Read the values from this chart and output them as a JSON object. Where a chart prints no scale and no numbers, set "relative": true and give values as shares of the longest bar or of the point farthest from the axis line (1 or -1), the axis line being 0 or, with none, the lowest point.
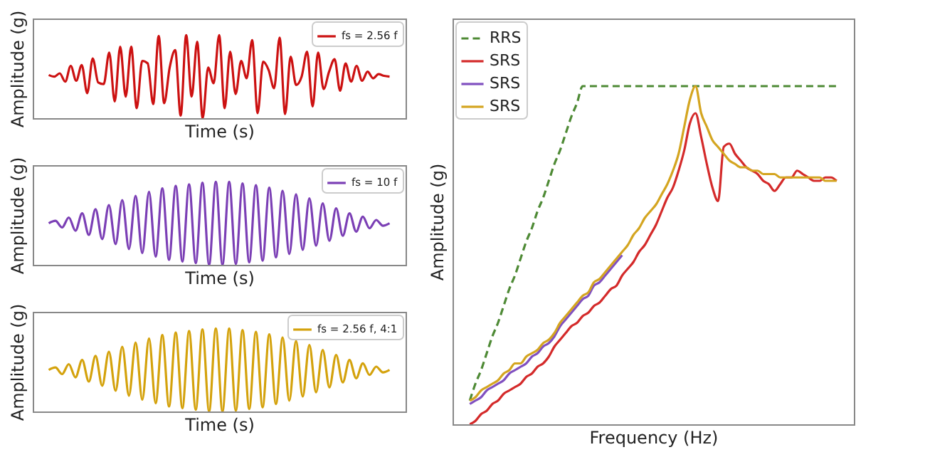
{
  "chart_data": [
    {
      "type": "line",
      "relative": true,
      "xlabel": "Time (s)",
      "ylabel": "Amplitude (g)",
      "legend": "top right",
      "tick_labels": false,
      "categories": [
        null,
        null,
        null,
        null,
        null,
        null,
        null,
        null,
        null,
        null,
        null,
        null,
        null,
        null,
        null,
        null,
        null,
        null,
        null,
        null,
        null,
        null,
        null,
        null,
        null,
        null,
        null,
        null,
        null,
        null,
        null,
        null,
        null,
        null,
        null,
        null,
        null,
        null,
        null,
        null,
        null,
        null,
        null,
        null,
        null,
        null,
        null,
        null,
        null,
        null,
        null,
        null,
        null,
        null,
        null,
        null,
        null,
        null,
        null,
        null,
        null,
        null,
        null
      ],
      "series": [
        {
          "name": "fs = 2.56 f",
          "color": "#cc1111",
          "values": [
            0.52,
            0.5,
            0.54,
            0.44,
            0.63,
            0.45,
            0.64,
            0.3,
            0.72,
            0.43,
            0.41,
            0.79,
            0.2,
            0.86,
            0.26,
            0.86,
            0.12,
            0.69,
            0.66,
            0.17,
            0.99,
            0.18,
            0.61,
            0.82,
            0.03,
            1,
            0.26,
            0.92,
            0,
            0.61,
            0.42,
            1,
            0.12,
            0.8,
            0.29,
            0.69,
            0.48,
            0.94,
            0.06,
            0.68,
            0.58,
            0.36,
            0.97,
            0.05,
            0.74,
            0.4,
            0.5,
            0.8,
            0.14,
            0.79,
            0.35,
            0.56,
            0.71,
            0.33,
            0.66,
            0.44,
            0.63,
            0.45,
            0.56,
            0.48,
            0.53,
            0.51,
            0.5
          ]
        }
      ]
    },
    {
      "type": "line",
      "relative": true,
      "xlabel": "Time (s)",
      "ylabel": "Amplitude (g)",
      "legend": "top right",
      "tick_labels": false,
      "categories": [
        null,
        null,
        null,
        null,
        null,
        null,
        null,
        null,
        null,
        null,
        null,
        null,
        null,
        null,
        null,
        null,
        null,
        null,
        null,
        null,
        null,
        null,
        null,
        null,
        null,
        null,
        null,
        null,
        null,
        null,
        null,
        null,
        null,
        null,
        null,
        null,
        null,
        null,
        null,
        null,
        null,
        null,
        null,
        null,
        null,
        null,
        null,
        null,
        null,
        null,
        null,
        null
      ],
      "series": [
        {
          "name": "fs = 10 f",
          "color": "#7b3fb5",
          "values": [
            0.5,
            0.53,
            0.45,
            0.57,
            0.41,
            0.62,
            0.36,
            0.67,
            0.31,
            0.72,
            0.25,
            0.78,
            0.19,
            0.83,
            0.14,
            0.88,
            0.1,
            0.92,
            0.06,
            0.95,
            0.04,
            0.97,
            0.02,
            0.99,
            0,
            1,
            0,
            1,
            0.01,
            0.98,
            0.03,
            0.96,
            0.05,
            0.93,
            0.09,
            0.89,
            0.13,
            0.85,
            0.18,
            0.8,
            0.23,
            0.74,
            0.29,
            0.68,
            0.35,
            0.62,
            0.4,
            0.58,
            0.44,
            0.54,
            0.47,
            0.5
          ]
        }
      ]
    },
    {
      "type": "line",
      "relative": true,
      "xlabel": "Time (s)",
      "ylabel": "Amplitude (g)",
      "legend": "top right",
      "tick_labels": false,
      "categories": [
        null,
        null,
        null,
        null,
        null,
        null,
        null,
        null,
        null,
        null,
        null,
        null,
        null,
        null,
        null,
        null,
        null,
        null,
        null,
        null,
        null,
        null,
        null,
        null,
        null,
        null,
        null,
        null,
        null,
        null,
        null,
        null,
        null,
        null,
        null,
        null,
        null,
        null,
        null,
        null,
        null,
        null,
        null,
        null,
        null,
        null,
        null,
        null,
        null,
        null,
        null,
        null
      ],
      "series": [
        {
          "name": "fs = 2.56 f, 4:1",
          "color": "#d4a20c",
          "values": [
            0.5,
            0.53,
            0.45,
            0.57,
            0.41,
            0.62,
            0.36,
            0.67,
            0.31,
            0.72,
            0.25,
            0.78,
            0.19,
            0.83,
            0.14,
            0.88,
            0.1,
            0.92,
            0.06,
            0.95,
            0.04,
            0.97,
            0.02,
            0.99,
            0,
            1,
            0,
            1,
            0.01,
            0.98,
            0.03,
            0.96,
            0.05,
            0.93,
            0.09,
            0.89,
            0.13,
            0.85,
            0.18,
            0.8,
            0.23,
            0.74,
            0.29,
            0.68,
            0.35,
            0.62,
            0.4,
            0.58,
            0.44,
            0.54,
            0.47,
            0.5
          ]
        }
      ]
    },
    {
      "type": "line",
      "relative": true,
      "xlabel": "Frequency (Hz)",
      "ylabel": "Amplitude (g)",
      "legend": "top left",
      "tick_labels": false,
      "categories": [
        null,
        null,
        null,
        null,
        null,
        null,
        null,
        null,
        null,
        null,
        null,
        null,
        null,
        null,
        null,
        null,
        null,
        null,
        null,
        null,
        null,
        null,
        null,
        null,
        null,
        null,
        null,
        null,
        null,
        null,
        null,
        null,
        null,
        null,
        null,
        null,
        null,
        null,
        null,
        null,
        null,
        null,
        null,
        null,
        null,
        null,
        null,
        null,
        null,
        null,
        null,
        null,
        null,
        null,
        null,
        null,
        null,
        null,
        null,
        null,
        null,
        null,
        null,
        null,
        null,
        null
      ],
      "series": [
        {
          "name": "RRS",
          "color": "#4e8a35",
          "line_style": "dashed",
          "values": [
            0.07,
            0.12,
            0.16,
            0.21,
            0.26,
            0.3,
            0.35,
            0.4,
            0.44,
            0.49,
            0.54,
            0.58,
            0.63,
            0.67,
            0.72,
            0.77,
            0.81,
            0.86,
            0.91,
            0.95,
            1,
            1,
            1,
            1,
            1,
            1,
            1,
            1,
            1,
            1,
            1,
            1,
            1,
            1,
            1,
            1,
            1,
            1,
            1,
            1,
            1,
            1,
            1,
            1,
            1,
            1,
            1,
            1,
            1,
            1,
            1,
            1,
            1,
            1,
            1,
            1,
            1,
            1,
            1,
            1,
            1,
            1,
            1,
            1,
            1,
            1
          ]
        },
        {
          "name": "SRS",
          "color": "#d42a2a",
          "values": [
            0,
            0.01,
            0.03,
            0.04,
            0.06,
            0.07,
            0.09,
            0.1,
            0.11,
            0.12,
            0.14,
            0.15,
            0.17,
            0.18,
            0.2,
            0.23,
            0.25,
            0.27,
            0.29,
            0.3,
            0.32,
            0.33,
            0.35,
            0.36,
            0.38,
            0.4,
            0.41,
            0.44,
            0.46,
            0.48,
            0.51,
            0.53,
            0.56,
            0.59,
            0.63,
            0.67,
            0.7,
            0.75,
            0.81,
            0.89,
            0.92,
            0.85,
            0.77,
            0.7,
            0.66,
            0.82,
            0.83,
            0.8,
            0.78,
            0.76,
            0.75,
            0.74,
            0.72,
            0.71,
            0.69,
            0.71,
            0.73,
            0.73,
            0.75,
            0.74,
            0.73,
            0.72,
            0.72,
            0.73,
            0.73,
            0.72
          ]
        },
        {
          "name": "SRS",
          "color": "#8050c0",
          "values": [
            0.06,
            0.07,
            0.08,
            0.1,
            0.11,
            0.12,
            0.13,
            0.15,
            0.16,
            0.17,
            0.18,
            0.2,
            0.21,
            0.23,
            0.24,
            0.26,
            0.29,
            0.31,
            0.33,
            0.35,
            0.37,
            0.38,
            0.41,
            0.42,
            0.44,
            0.46,
            0.48,
            0.5,
            null,
            null,
            null,
            null,
            null,
            null,
            null,
            null,
            null,
            null,
            null,
            null,
            null,
            null,
            null,
            null,
            null,
            null,
            null,
            null,
            null,
            null,
            null,
            null,
            null,
            null,
            null,
            null,
            null,
            null,
            null,
            null,
            null,
            null,
            null,
            null,
            null,
            null
          ]
        },
        {
          "name": "SRS",
          "color": "#d4a520",
          "values": [
            0.07,
            0.08,
            0.1,
            0.11,
            0.12,
            0.13,
            0.15,
            0.16,
            0.18,
            0.18,
            0.2,
            0.21,
            0.22,
            0.24,
            0.25,
            0.27,
            0.3,
            0.32,
            0.34,
            0.36,
            0.38,
            0.39,
            0.42,
            0.43,
            0.45,
            0.47,
            0.49,
            0.51,
            0.53,
            0.56,
            0.58,
            0.61,
            0.63,
            0.65,
            0.68,
            0.71,
            0.75,
            0.8,
            0.88,
            0.96,
            1,
            0.92,
            0.88,
            0.84,
            0.82,
            0.8,
            0.78,
            0.77,
            0.76,
            0.76,
            0.75,
            0.75,
            0.74,
            0.74,
            0.74,
            0.73,
            0.73,
            0.73,
            0.73,
            0.73,
            0.73,
            0.73,
            0.73,
            0.72,
            0.72,
            0.72
          ]
        }
      ]
    }
  ]
}
